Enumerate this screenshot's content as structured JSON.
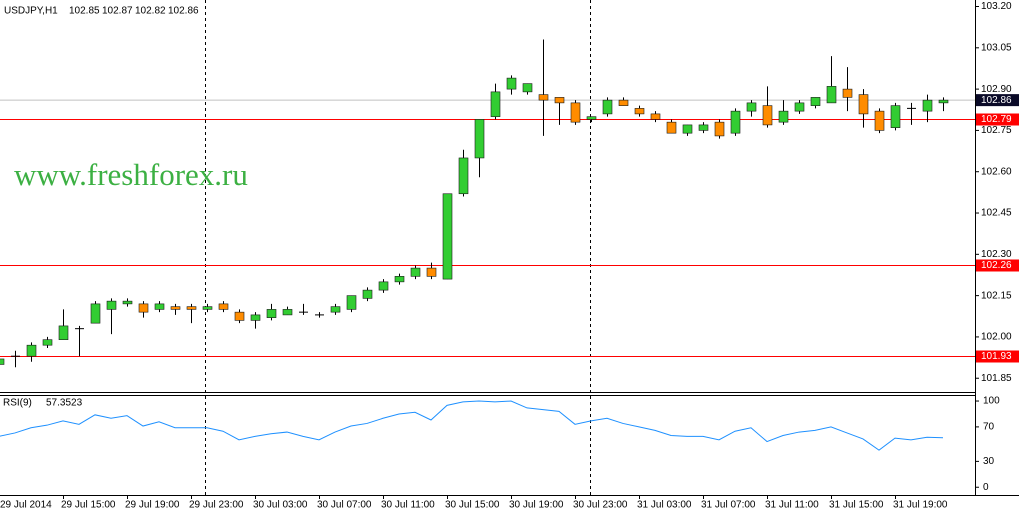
{
  "chart_data": [
    {
      "type": "candlestick",
      "title": "USDJPY,H1",
      "watermark": "www.freshforex.ru",
      "categories": [
        "29 Jul 2014",
        null,
        null,
        null,
        "29 Jul 15:00",
        null,
        null,
        null,
        "29 Jul 19:00",
        null,
        null,
        null,
        "29 Jul 23:00",
        null,
        null,
        null,
        "30 Jul 03:00",
        null,
        null,
        null,
        "30 Jul 07:00",
        null,
        null,
        null,
        "30 Jul 11:00",
        null,
        null,
        null,
        "30 Jul 15:00",
        null,
        null,
        null,
        "30 Jul 19:00",
        null,
        null,
        null,
        "30 Jul 23:00",
        null,
        null,
        null,
        "31 Jul 03:00",
        null,
        null,
        null,
        "31 Jul 07:00",
        null,
        null,
        null,
        "31 Jul 11:00",
        null,
        null,
        null,
        "31 Jul 15:00",
        null,
        null,
        null,
        "31 Jul 19:00",
        null,
        null,
        null
      ],
      "open": [
        101.9,
        101.93,
        101.93,
        101.97,
        101.99,
        102.03,
        102.05,
        102.1,
        102.12,
        102.12,
        102.1,
        102.11,
        102.11,
        102.1,
        102.12,
        102.09,
        102.06,
        102.07,
        102.08,
        102.09,
        102.08,
        102.09,
        102.1,
        102.14,
        102.17,
        102.2,
        102.22,
        102.25,
        102.21,
        102.52,
        102.65,
        102.8,
        102.9,
        102.89,
        102.88,
        102.87,
        102.85,
        102.79,
        102.81,
        102.86,
        102.83,
        102.81,
        102.78,
        102.74,
        102.75,
        102.78,
        102.74,
        102.82,
        102.84,
        102.78,
        102.82,
        102.84,
        102.85,
        102.9,
        102.88,
        102.82,
        102.76,
        102.83,
        102.82,
        102.85
      ],
      "high": [
        101.93,
        101.95,
        101.98,
        102.0,
        102.1,
        102.04,
        102.13,
        102.14,
        102.14,
        102.13,
        102.13,
        102.12,
        102.12,
        102.12,
        102.13,
        102.1,
        102.09,
        102.12,
        102.11,
        102.12,
        102.09,
        102.12,
        102.15,
        102.18,
        102.21,
        102.23,
        102.26,
        102.27,
        102.52,
        102.68,
        102.79,
        102.92,
        102.95,
        102.92,
        103.08,
        102.87,
        102.86,
        102.8,
        102.87,
        102.87,
        102.84,
        102.82,
        102.79,
        102.77,
        102.78,
        102.79,
        102.83,
        102.86,
        102.91,
        102.86,
        102.86,
        102.87,
        103.02,
        102.98,
        102.9,
        102.83,
        102.85,
        102.85,
        102.88,
        102.87
      ],
      "low": [
        101.89,
        101.89,
        101.91,
        101.96,
        101.99,
        101.93,
        102.05,
        102.01,
        102.11,
        102.07,
        102.09,
        102.08,
        102.05,
        102.09,
        102.09,
        102.05,
        102.03,
        102.06,
        102.08,
        102.08,
        102.07,
        102.08,
        102.09,
        102.13,
        102.16,
        102.19,
        102.21,
        102.21,
        102.21,
        102.51,
        102.58,
        102.79,
        102.88,
        102.88,
        102.73,
        102.77,
        102.77,
        102.78,
        102.8,
        102.84,
        102.8,
        102.78,
        102.74,
        102.73,
        102.74,
        102.72,
        102.73,
        102.8,
        102.76,
        102.77,
        102.81,
        102.83,
        102.85,
        102.82,
        102.76,
        102.74,
        102.75,
        102.77,
        102.78,
        102.82
      ],
      "close": [
        101.92,
        101.93,
        101.97,
        101.99,
        102.04,
        102.03,
        102.12,
        102.13,
        102.13,
        102.09,
        102.12,
        102.1,
        102.1,
        102.11,
        102.1,
        102.06,
        102.08,
        102.1,
        102.1,
        102.09,
        102.08,
        102.11,
        102.15,
        102.17,
        102.2,
        102.22,
        102.25,
        102.22,
        102.52,
        102.65,
        102.79,
        102.89,
        102.94,
        102.92,
        102.86,
        102.85,
        102.78,
        102.8,
        102.86,
        102.84,
        102.81,
        102.79,
        102.74,
        102.77,
        102.77,
        102.73,
        102.82,
        102.85,
        102.77,
        102.82,
        102.85,
        102.87,
        102.91,
        102.87,
        102.81,
        102.75,
        102.84,
        102.83,
        102.86,
        102.86
      ],
      "up_color": "#32cd32",
      "down_color": "#ff8c00",
      "doji_color": "#000000",
      "ylim": [
        101.8,
        103.22
      ],
      "yticks": [
        {
          "value": 103.2,
          "label": "103.20"
        },
        103.05,
        {
          "value": 102.9,
          "label": "102.90"
        },
        102.75,
        {
          "value": 102.6,
          "label": "102.60"
        },
        102.45,
        {
          "value": 102.3,
          "label": "102.30"
        },
        102.15,
        {
          "value": 102.0,
          "label": "102.00"
        },
        101.85
      ],
      "hlines": [
        102.79,
        102.26,
        101.93
      ],
      "hline_color": "#ff0000"
    },
    {
      "type": "line",
      "title": "RSI(9)",
      "color": "#1e90ff",
      "values": [
        59,
        63,
        69,
        72,
        77,
        73,
        84,
        80,
        83,
        71,
        76,
        69,
        69,
        69,
        65,
        55,
        59,
        62,
        64,
        59,
        55,
        64,
        71,
        74,
        80,
        85,
        87,
        78,
        95,
        99,
        100,
        99,
        100,
        92,
        90,
        88,
        73,
        77,
        80,
        74,
        70,
        66,
        60,
        59,
        59,
        55,
        65,
        69,
        53,
        60,
        64,
        66,
        70,
        63,
        56,
        43,
        57,
        55,
        58,
        57.3523
      ],
      "ylim": [
        -9,
        107
      ],
      "yticks": [
        100,
        70,
        30,
        0
      ]
    }
  ]
}
